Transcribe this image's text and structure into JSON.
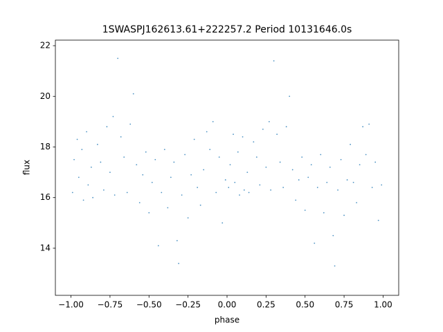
{
  "chart_data": {
    "type": "scatter",
    "title": "1SWASPJ162613.61+222257.2 Period 10131646.0s",
    "xlabel": "phase",
    "ylabel": "flux",
    "color": "#1f77b4",
    "x": [
      -0.99,
      -0.98,
      -0.96,
      -0.95,
      -0.93,
      -0.92,
      -0.9,
      -0.89,
      -0.87,
      -0.86,
      -0.83,
      -0.81,
      -0.79,
      -0.77,
      -0.75,
      -0.73,
      -0.72,
      -0.7,
      -0.68,
      -0.66,
      -0.64,
      -0.62,
      -0.6,
      -0.58,
      -0.56,
      -0.54,
      -0.52,
      -0.5,
      -0.48,
      -0.46,
      -0.44,
      -0.42,
      -0.4,
      -0.38,
      -0.36,
      -0.34,
      -0.32,
      -0.31,
      -0.29,
      -0.27,
      -0.25,
      -0.23,
      -0.21,
      -0.19,
      -0.17,
      -0.15,
      -0.13,
      -0.11,
      -0.09,
      -0.07,
      -0.05,
      -0.03,
      -0.01,
      0.01,
      0.02,
      0.04,
      0.05,
      0.07,
      0.08,
      0.1,
      0.11,
      0.13,
      0.14,
      0.17,
      0.19,
      0.21,
      0.23,
      0.25,
      0.27,
      0.28,
      0.3,
      0.32,
      0.34,
      0.36,
      0.38,
      0.4,
      0.42,
      0.44,
      0.46,
      0.48,
      0.5,
      0.52,
      0.54,
      0.56,
      0.58,
      0.6,
      0.62,
      0.64,
      0.66,
      0.68,
      0.69,
      0.71,
      0.73,
      0.75,
      0.77,
      0.79,
      0.81,
      0.83,
      0.85,
      0.87,
      0.89,
      0.91,
      0.93,
      0.95,
      0.97,
      0.99
    ],
    "y": [
      16.2,
      17.5,
      18.3,
      16.8,
      17.9,
      15.9,
      18.6,
      16.5,
      17.2,
      16.0,
      18.1,
      17.4,
      16.3,
      18.8,
      17.0,
      19.2,
      16.1,
      21.5,
      18.4,
      17.6,
      16.2,
      18.9,
      20.1,
      17.3,
      15.8,
      16.9,
      17.8,
      15.4,
      16.6,
      17.5,
      14.1,
      16.2,
      17.9,
      15.6,
      16.8,
      17.4,
      14.3,
      13.4,
      16.1,
      17.7,
      15.2,
      16.9,
      18.3,
      16.4,
      15.7,
      17.1,
      18.6,
      17.9,
      19.0,
      16.2,
      17.6,
      15.0,
      16.7,
      16.4,
      17.3,
      18.5,
      16.6,
      17.8,
      16.1,
      18.4,
      16.3,
      17.0,
      16.2,
      18.2,
      17.6,
      16.5,
      18.7,
      17.2,
      19.0,
      16.3,
      21.4,
      18.5,
      17.4,
      16.4,
      18.8,
      20.0,
      17.1,
      15.9,
      16.7,
      17.6,
      15.5,
      16.8,
      17.3,
      14.2,
      16.4,
      17.7,
      15.4,
      16.6,
      17.2,
      14.5,
      13.3,
      16.3,
      17.5,
      15.3,
      16.7,
      18.1,
      16.6,
      15.8,
      17.3,
      18.8,
      17.7,
      18.9,
      16.4,
      17.4,
      15.1,
      16.5
    ],
    "xlim": [
      -1.1,
      1.1
    ],
    "ylim": [
      12.14,
      22.22
    ],
    "xticks": [
      {
        "value": -1.0,
        "label": "−1.00"
      },
      {
        "value": -0.75,
        "label": "−0.75"
      },
      {
        "value": -0.5,
        "label": "−0.50"
      },
      {
        "value": -0.25,
        "label": "−0.25"
      },
      {
        "value": 0,
        "label": "0.00"
      },
      {
        "value": 0.25,
        "label": "0.25"
      },
      {
        "value": 0.5,
        "label": "0.50"
      },
      {
        "value": 0.75,
        "label": "0.75"
      },
      {
        "value": 1.0,
        "label": "1.00"
      }
    ],
    "yticks": [
      14,
      16,
      18,
      20,
      22
    ]
  }
}
